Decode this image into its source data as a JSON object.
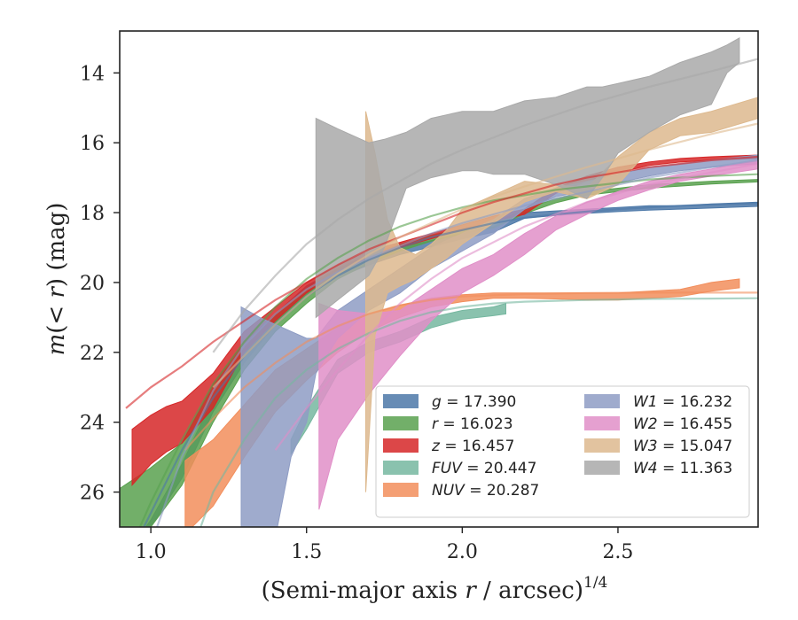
{
  "chart_data": {
    "type": "area",
    "xlabel_main": "(Semi-major axis ",
    "xlabel_var": "r",
    "xlabel_tail": " / arcsec)",
    "xlabel_sup": "1/4",
    "ylabel_pre": "m",
    "ylabel_mid": "(< ",
    "ylabel_var": "r",
    "ylabel_post": ") (mag)",
    "xlim": [
      0.9,
      2.95
    ],
    "ylim": [
      27,
      12.8
    ],
    "y_inverted": true,
    "xticks": [
      1.0,
      1.5,
      2.0,
      2.5
    ],
    "xtick_labels": [
      "1.0",
      "1.5",
      "2.0",
      "2.5"
    ],
    "yticks": [
      14,
      16,
      18,
      20,
      22,
      24,
      26
    ],
    "ytick_labels": [
      "14",
      "16",
      "18",
      "20",
      "22",
      "24",
      "26"
    ],
    "legend_position": "lower-right",
    "series": [
      {
        "band": "g",
        "value": "17.390",
        "color": "#4c78a8",
        "band_x": [
          0.96,
          1.0,
          1.1,
          1.2,
          1.3,
          1.4,
          1.5,
          1.6,
          1.7,
          1.8,
          1.9,
          2.0,
          2.1,
          2.2,
          2.3,
          2.4,
          2.5,
          2.6,
          2.7,
          2.8,
          2.95
        ],
        "band_lo": [
          27.3,
          26.8,
          25.2,
          23.3,
          21.9,
          20.9,
          20.1,
          19.6,
          19.3,
          19.0,
          18.8,
          18.6,
          18.4,
          18.0,
          17.95,
          17.9,
          17.85,
          17.8,
          17.8,
          17.75,
          17.7
        ],
        "band_hi": [
          27.3,
          27.0,
          25.6,
          23.7,
          22.3,
          21.2,
          20.4,
          19.85,
          19.5,
          19.2,
          18.98,
          18.75,
          18.56,
          18.16,
          18.08,
          18.02,
          17.97,
          17.93,
          17.9,
          17.87,
          17.82
        ],
        "fit_x": [
          0.95,
          1.0,
          1.1,
          1.2,
          1.3,
          1.4,
          1.5,
          1.6,
          1.7,
          1.8,
          1.9,
          2.0,
          2.1,
          2.2,
          2.3,
          2.4,
          2.5,
          2.6,
          2.7,
          2.8,
          2.95
        ],
        "fit_y": [
          27.5,
          26.6,
          24.8,
          23.3,
          22.1,
          21.2,
          20.4,
          19.8,
          19.35,
          19.0,
          18.7,
          18.5,
          18.3,
          18.15,
          18.05,
          17.97,
          17.9,
          17.85,
          17.8,
          17.77,
          17.74
        ]
      },
      {
        "band": "r",
        "value": "16.023",
        "color": "#59a14f",
        "band_x": [
          0.9,
          0.95,
          1.0,
          1.1,
          1.2,
          1.3,
          1.4,
          1.5,
          1.6,
          1.7,
          1.8,
          1.9,
          2.0,
          2.1,
          2.2,
          2.3,
          2.4,
          2.5,
          2.6,
          2.7,
          2.8,
          2.95
        ],
        "band_lo": [
          25.9,
          25.6,
          25.3,
          24.6,
          22.9,
          21.7,
          20.9,
          20.2,
          19.6,
          19.2,
          18.9,
          18.65,
          18.45,
          18.3,
          17.9,
          17.6,
          17.4,
          17.3,
          17.2,
          17.15,
          17.1,
          17.05
        ],
        "band_hi": [
          27.1,
          27.2,
          27.0,
          25.8,
          24.0,
          22.5,
          21.4,
          20.6,
          19.9,
          19.45,
          19.1,
          18.82,
          18.6,
          18.44,
          18.03,
          17.72,
          17.5,
          17.4,
          17.3,
          17.24,
          17.18,
          17.12
        ],
        "fit_x": [
          0.95,
          1.0,
          1.1,
          1.2,
          1.3,
          1.4,
          1.5,
          1.6,
          1.7,
          1.8,
          1.9,
          2.0,
          2.1,
          2.2,
          2.3,
          2.4,
          2.5,
          2.6,
          2.7,
          2.8,
          2.95
        ],
        "fit_y": [
          27.3,
          26.3,
          24.5,
          22.9,
          21.7,
          20.7,
          19.9,
          19.3,
          18.8,
          18.4,
          18.1,
          17.85,
          17.65,
          17.5,
          17.35,
          17.25,
          17.15,
          17.05,
          17.0,
          16.95,
          16.9
        ]
      },
      {
        "band": "z",
        "value": "16.457",
        "color": "#d62728",
        "band_x": [
          0.94,
          1.0,
          1.05,
          1.1,
          1.15,
          1.2,
          1.25,
          1.3,
          1.4,
          1.5,
          1.6,
          1.7,
          1.8,
          1.9,
          2.0,
          2.1,
          2.2,
          2.3,
          2.4,
          2.5,
          2.6,
          2.7,
          2.8,
          2.95
        ],
        "band_lo": [
          24.2,
          23.8,
          23.55,
          23.4,
          23.0,
          22.6,
          22.0,
          21.4,
          20.7,
          20.0,
          19.5,
          19.1,
          18.85,
          18.6,
          18.35,
          18.1,
          17.9,
          17.3,
          16.95,
          16.7,
          16.55,
          16.45,
          16.4,
          16.35
        ],
        "band_hi": [
          25.8,
          25.2,
          24.85,
          24.6,
          24.1,
          23.6,
          22.8,
          22.0,
          21.1,
          20.3,
          19.7,
          19.3,
          19.0,
          18.75,
          18.5,
          18.25,
          18.05,
          17.45,
          17.1,
          16.85,
          16.65,
          16.55,
          16.5,
          16.45
        ],
        "fit_x": [
          0.92,
          1.0,
          1.1,
          1.2,
          1.3,
          1.4,
          1.5,
          1.6,
          1.7,
          1.8,
          1.9,
          2.0,
          2.1,
          2.2,
          2.3,
          2.4,
          2.5,
          2.6,
          2.7,
          2.8,
          2.95
        ],
        "fit_y": [
          23.6,
          23.0,
          22.4,
          21.7,
          21.1,
          20.5,
          20.0,
          19.5,
          19.05,
          18.7,
          18.35,
          18.0,
          17.7,
          17.45,
          17.2,
          17.0,
          16.85,
          16.7,
          16.6,
          16.5,
          16.4
        ]
      },
      {
        "band": "FUV",
        "value": "20.447",
        "color": "#76b7a0",
        "band_x": [
          1.45,
          1.5,
          1.55,
          1.6,
          1.7,
          1.8,
          1.9,
          2.0,
          2.05,
          2.1,
          2.14
        ],
        "band_lo": [
          24.5,
          23.6,
          22.9,
          22.2,
          21.7,
          21.4,
          21.0,
          20.8,
          20.75,
          20.7,
          20.6
        ],
        "band_hi": [
          24.9,
          24.2,
          23.4,
          22.6,
          22.0,
          21.7,
          21.3,
          21.05,
          21.0,
          20.95,
          20.9
        ],
        "fit_x": [
          1.1,
          1.2,
          1.3,
          1.4,
          1.5,
          1.6,
          1.7,
          1.8,
          1.9,
          2.0,
          2.1,
          2.2,
          2.4,
          2.6,
          2.8,
          2.95
        ],
        "fit_y": [
          28.5,
          26.0,
          24.5,
          23.3,
          22.5,
          21.9,
          21.45,
          21.1,
          20.85,
          20.7,
          20.6,
          20.55,
          20.5,
          20.47,
          20.46,
          20.45
        ]
      },
      {
        "band": "NUV",
        "value": "20.287",
        "color": "#f28e5c",
        "band_x": [
          1.11,
          1.2,
          1.3,
          1.4,
          1.5,
          1.6,
          1.7,
          1.8,
          1.9,
          2.0,
          2.1,
          2.2,
          2.3,
          2.4,
          2.5,
          2.6,
          2.7,
          2.8,
          2.89
        ],
        "band_lo": [
          25.1,
          24.5,
          23.5,
          22.5,
          21.9,
          21.3,
          20.9,
          20.65,
          20.45,
          20.35,
          20.3,
          20.3,
          20.3,
          20.3,
          20.3,
          20.25,
          20.2,
          20.0,
          19.9
        ],
        "band_hi": [
          27.2,
          26.4,
          25.0,
          23.7,
          22.8,
          22.0,
          21.4,
          21.0,
          20.7,
          20.55,
          20.45,
          20.45,
          20.47,
          20.5,
          20.5,
          20.45,
          20.4,
          20.25,
          20.15
        ],
        "fit_x": [
          1.11,
          1.2,
          1.3,
          1.4,
          1.5,
          1.6,
          1.7,
          1.8,
          1.9,
          2.0,
          2.2,
          2.4,
          2.6,
          2.8,
          2.95
        ],
        "fit_y": [
          24.8,
          23.9,
          23.0,
          22.3,
          21.7,
          21.25,
          20.9,
          20.65,
          20.5,
          20.4,
          20.33,
          20.3,
          20.29,
          20.29,
          20.29
        ]
      },
      {
        "band": "W1",
        "value": "16.232",
        "color": "#8e9cc4",
        "band_x": [
          1.29,
          1.35,
          1.4,
          1.45,
          1.5,
          1.53,
          1.6,
          1.7,
          1.8,
          1.9,
          2.0,
          2.1,
          2.2,
          2.3,
          2.4,
          2.5,
          2.6,
          2.7,
          2.8,
          2.95
        ],
        "band_lo": [
          20.7,
          21.0,
          21.2,
          21.4,
          21.6,
          21.6,
          20.8,
          20.2,
          19.6,
          19.0,
          18.6,
          18.2,
          17.6,
          17.3,
          17.1,
          16.9,
          16.7,
          16.6,
          16.5,
          16.35
        ],
        "band_hi": [
          27.5,
          27.5,
          27.3,
          25.0,
          24.0,
          22.6,
          21.6,
          20.8,
          20.3,
          19.6,
          19.1,
          18.6,
          17.9,
          17.55,
          17.35,
          17.15,
          16.95,
          16.8,
          16.7,
          16.6
        ],
        "fit_x": [
          1.0,
          1.1,
          1.2,
          1.3,
          1.4,
          1.5,
          1.6,
          1.7,
          1.8,
          1.9,
          2.0,
          2.1,
          2.2,
          2.4,
          2.6,
          2.8,
          2.95
        ],
        "fit_y": [
          27.5,
          25.0,
          23.1,
          21.8,
          20.9,
          20.2,
          19.7,
          19.3,
          18.95,
          18.6,
          18.3,
          18.05,
          17.8,
          17.4,
          17.0,
          16.7,
          16.5
        ]
      },
      {
        "band": "W2",
        "value": "16.455",
        "color": "#e08fc8",
        "band_x": [
          1.54,
          1.6,
          1.7,
          1.8,
          1.9,
          2.0,
          2.1,
          2.2,
          2.3,
          2.4,
          2.5,
          2.6,
          2.7,
          2.8,
          2.95
        ],
        "band_lo": [
          20.6,
          20.8,
          20.9,
          20.8,
          20.2,
          19.6,
          19.2,
          18.6,
          18.1,
          17.7,
          17.4,
          17.1,
          16.9,
          16.75,
          16.5
        ],
        "band_hi": [
          26.5,
          24.5,
          23.2,
          22.1,
          21.1,
          20.3,
          19.8,
          19.2,
          18.5,
          18.05,
          17.65,
          17.35,
          17.1,
          16.95,
          16.75
        ],
        "fit_x": [
          1.4,
          1.5,
          1.6,
          1.7,
          1.8,
          1.9,
          2.0,
          2.2,
          2.4,
          2.6,
          2.8,
          2.95
        ],
        "fit_y": [
          24.8,
          23.6,
          22.5,
          21.5,
          20.6,
          19.9,
          19.3,
          18.4,
          17.7,
          17.2,
          16.85,
          16.6
        ]
      },
      {
        "band": "W3",
        "value": "15.047",
        "color": "#ddb98e",
        "band_x": [
          1.69,
          1.72,
          1.76,
          1.8,
          1.85,
          1.9,
          1.95,
          2.0,
          2.1,
          2.2,
          2.3,
          2.4,
          2.5,
          2.6,
          2.7,
          2.8,
          2.95
        ],
        "band_lo": [
          15.1,
          16.3,
          18.2,
          19.0,
          19.2,
          18.9,
          18.5,
          17.9,
          17.5,
          17.1,
          17.2,
          17.3,
          16.4,
          15.7,
          15.3,
          15.1,
          14.7
        ],
        "band_hi": [
          26.0,
          21.5,
          20.3,
          20.1,
          19.9,
          19.6,
          19.3,
          18.9,
          18.3,
          17.7,
          17.4,
          17.6,
          17.2,
          16.2,
          15.8,
          15.7,
          15.3
        ],
        "fit_x": [
          1.2,
          1.3,
          1.4,
          1.5,
          1.6,
          1.7,
          1.8,
          1.9,
          2.0,
          2.1,
          2.2,
          2.4,
          2.6,
          2.8,
          2.95
        ],
        "fit_y": [
          23.0,
          22.1,
          21.2,
          20.4,
          19.75,
          19.2,
          18.7,
          18.3,
          17.9,
          17.55,
          17.25,
          16.7,
          16.2,
          15.75,
          15.45
        ]
      },
      {
        "band": "W4",
        "value": "11.363",
        "color": "#a9a9a9",
        "band_x": [
          1.53,
          1.6,
          1.7,
          1.75,
          1.82,
          1.9,
          2.0,
          2.05,
          2.1,
          2.2,
          2.3,
          2.4,
          2.45,
          2.5,
          2.6,
          2.7,
          2.8,
          2.85,
          2.89
        ],
        "band_lo": [
          15.3,
          15.6,
          16.0,
          15.9,
          15.7,
          15.3,
          15.1,
          15.1,
          15.1,
          14.8,
          14.7,
          14.4,
          14.4,
          14.3,
          14.1,
          13.7,
          13.4,
          13.2,
          13.0
        ],
        "band_hi": [
          21.0,
          20.5,
          19.8,
          19.0,
          17.3,
          17.0,
          16.8,
          16.8,
          16.9,
          16.9,
          17.2,
          17.6,
          17.0,
          16.3,
          15.7,
          15.2,
          14.9,
          14.0,
          13.7
        ],
        "fit_x": [
          1.2,
          1.3,
          1.4,
          1.5,
          1.6,
          1.7,
          1.8,
          1.9,
          2.0,
          2.2,
          2.4,
          2.6,
          2.8,
          2.95
        ],
        "fit_y": [
          22.0,
          20.8,
          19.8,
          18.9,
          18.2,
          17.6,
          17.1,
          16.6,
          16.2,
          15.5,
          14.9,
          14.4,
          13.95,
          13.6
        ]
      }
    ]
  }
}
